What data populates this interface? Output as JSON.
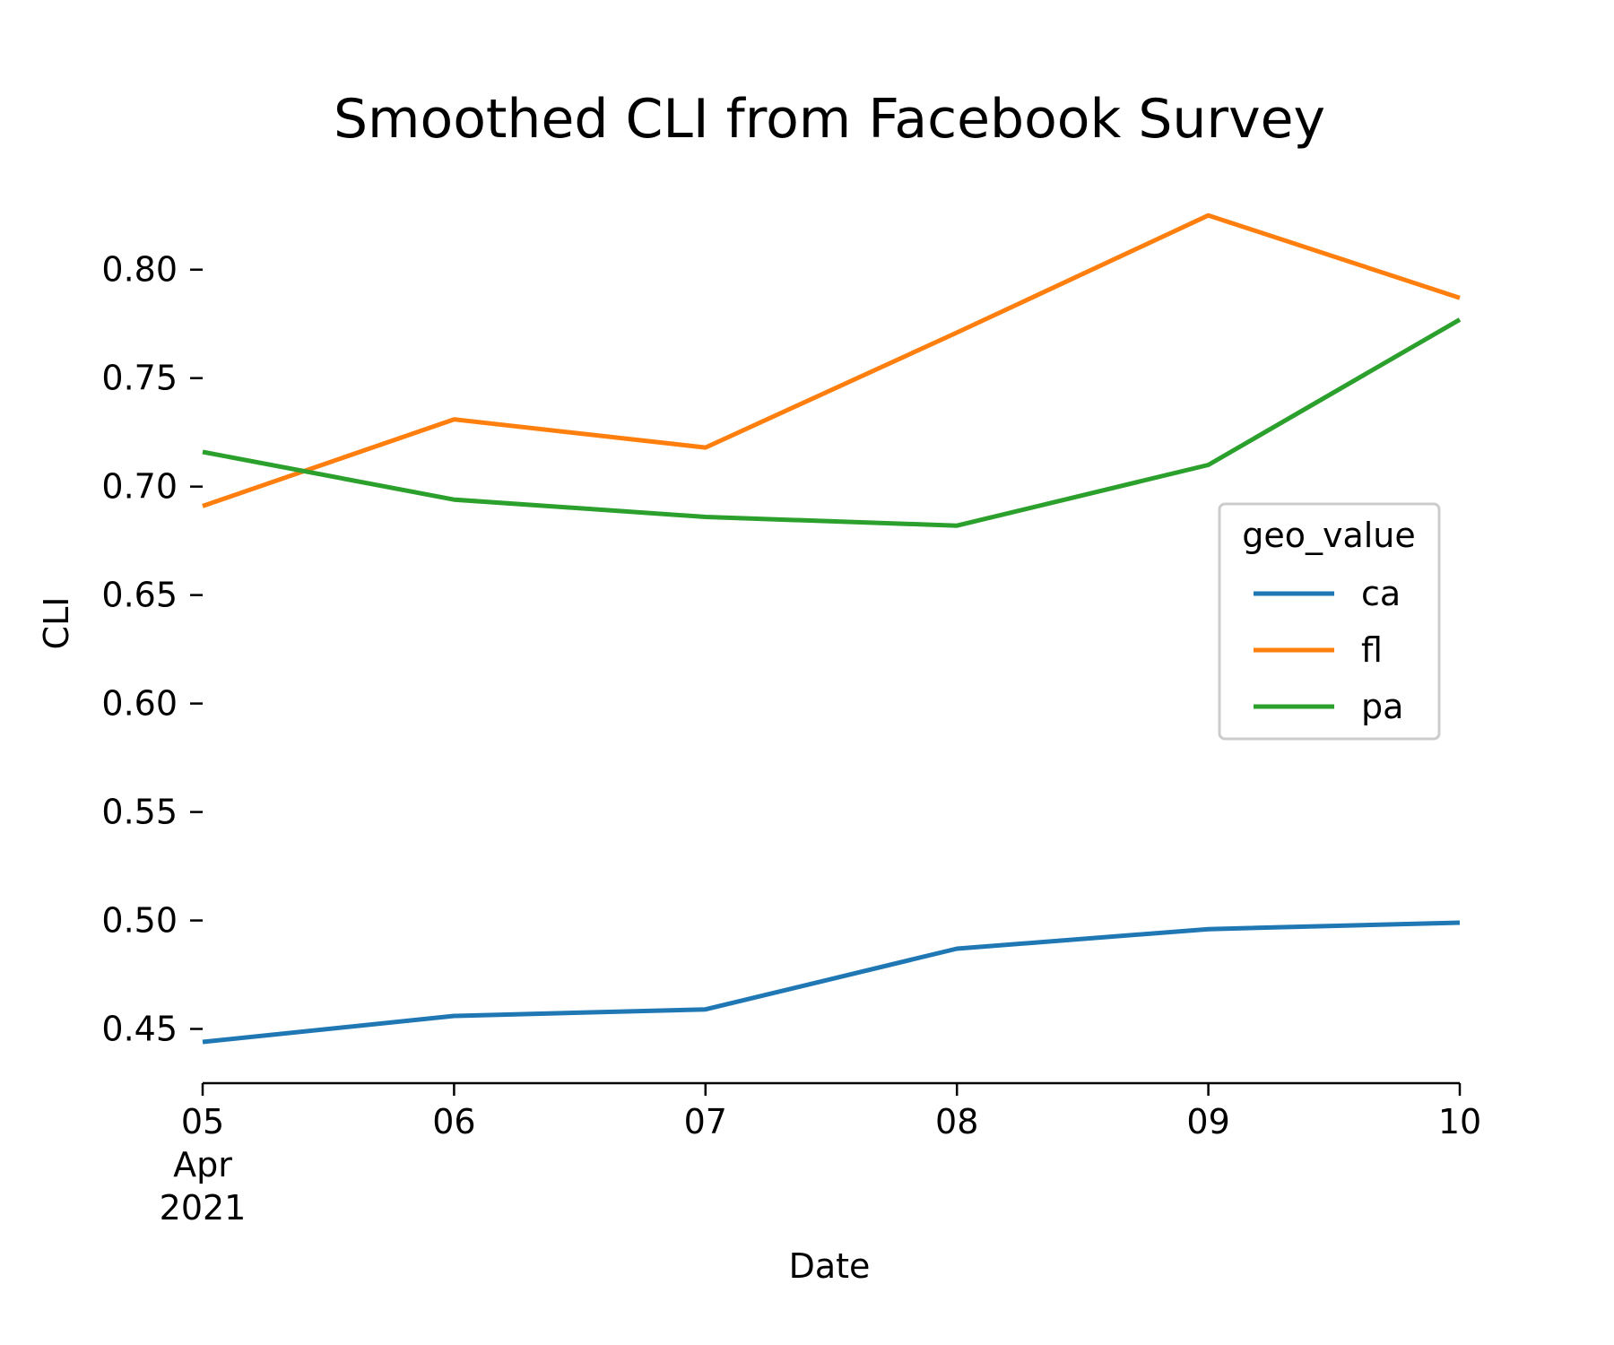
{
  "chart_data": {
    "type": "line",
    "title": "Smoothed CLI from Facebook Survey",
    "xlabel": "Date",
    "ylabel": "CLI",
    "x": [
      "2021-04-05",
      "2021-04-06",
      "2021-04-07",
      "2021-04-08",
      "2021-04-09",
      "2021-04-10"
    ],
    "x_tick_labels": [
      [
        "05",
        "Apr",
        "2021"
      ],
      [
        "06"
      ],
      [
        "07"
      ],
      [
        "08"
      ],
      [
        "09"
      ],
      [
        "10"
      ]
    ],
    "y_ticks": [
      "0.45",
      "0.50",
      "0.55",
      "0.60",
      "0.65",
      "0.70",
      "0.75",
      "0.80"
    ],
    "ylim": [
      0.425,
      0.8375
    ],
    "grid": false,
    "legend": {
      "title": "geo_value",
      "placement": "right"
    },
    "series": [
      {
        "name": "ca",
        "color": "#1f77b4",
        "values": [
          0.444,
          0.456,
          0.459,
          0.487,
          0.496,
          0.499
        ]
      },
      {
        "name": "fl",
        "color": "#ff7f0e",
        "values": [
          0.691,
          0.731,
          0.718,
          0.771,
          0.825,
          0.787
        ]
      },
      {
        "name": "pa",
        "color": "#2ca02c",
        "values": [
          0.716,
          0.694,
          0.686,
          0.682,
          0.71,
          0.777
        ]
      }
    ]
  }
}
